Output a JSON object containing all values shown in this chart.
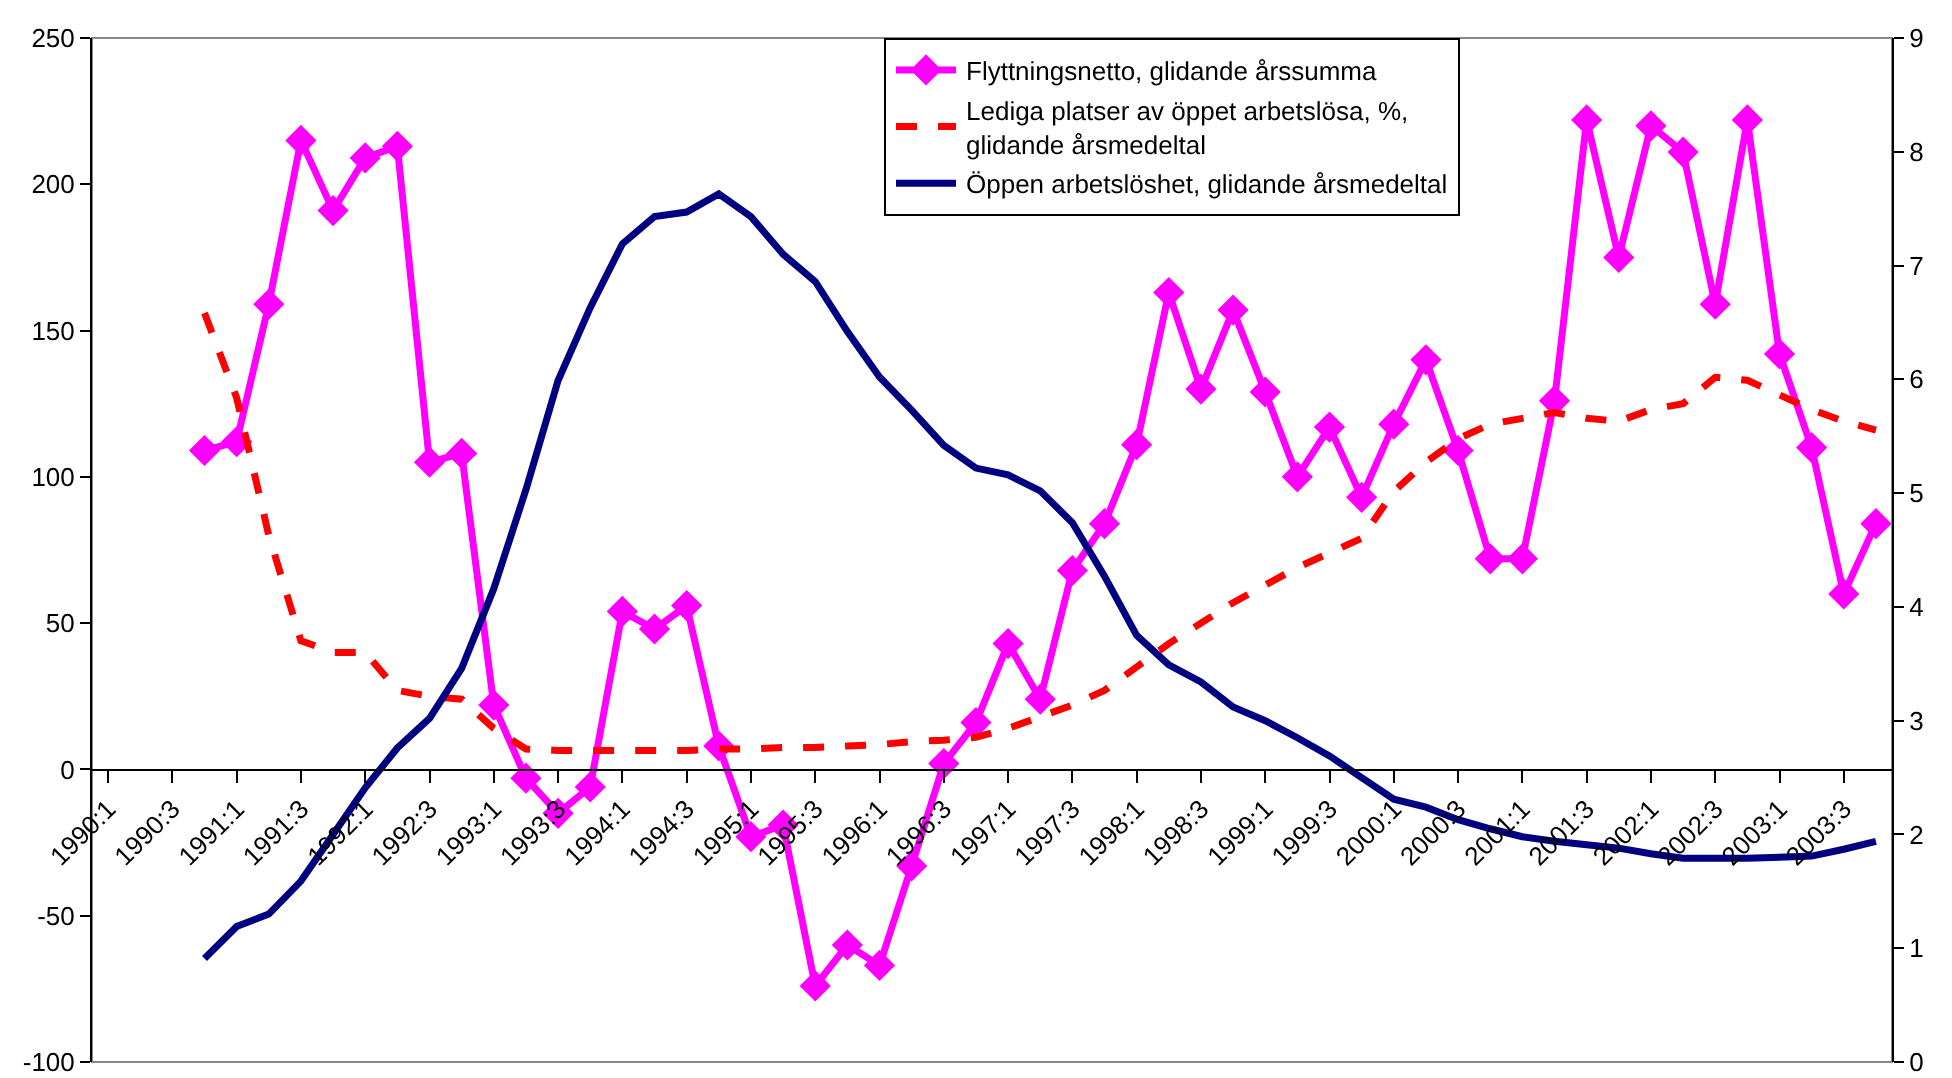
{
  "chart_data": {
    "type": "line",
    "categories": [
      "1990:1",
      null,
      "1990:3",
      null,
      "1991:1",
      null,
      "1991:3",
      null,
      "1992:1",
      null,
      "1992:3",
      null,
      "1993:1",
      null,
      "1993:3",
      null,
      "1994:1",
      null,
      "1994:3",
      null,
      "1995:1",
      null,
      "1995:3",
      null,
      "1996:1",
      null,
      "1996:3",
      null,
      "1997:1",
      null,
      "1997:3",
      null,
      "1998:1",
      null,
      "1998:3",
      null,
      "1999:1",
      null,
      "1999:3",
      null,
      "2000:1",
      null,
      "2000:3",
      null,
      "2001:1",
      null,
      "2001:3",
      null,
      "2002:1",
      null,
      "2002:3",
      null,
      "2003:1",
      null,
      "2003:3",
      null
    ],
    "series": [
      {
        "name": "Flyttningsnetto, glidande årssumma",
        "color": "#ff00ff",
        "marker": "diamond",
        "line_style": "solid",
        "values": [
          null,
          null,
          null,
          109,
          112,
          159,
          215,
          191,
          209,
          213,
          105,
          108,
          22,
          -3,
          -15,
          -6,
          54,
          48,
          56,
          8,
          -23,
          -19,
          -74,
          -60,
          -67,
          -33,
          2,
          16,
          43,
          24,
          68,
          84,
          111,
          163,
          130,
          157,
          129,
          100,
          117,
          93,
          118,
          140,
          109,
          72,
          72,
          126,
          222,
          175,
          220,
          211,
          159,
          222,
          142,
          110,
          60,
          84
        ]
      },
      {
        "name": "Lediga platser av öppet arbetslösa, %,\nglidande årsmedeltal",
        "color": "#ff0000",
        "marker": "none",
        "line_style": "dashed",
        "values": [
          null,
          null,
          null,
          156,
          127,
          80,
          44,
          40,
          40,
          27,
          25,
          24,
          14,
          7,
          6.5,
          6.5,
          6.5,
          6.5,
          6.5,
          7,
          7,
          7.5,
          7.5,
          8,
          8.5,
          9.5,
          10,
          11,
          14,
          18,
          22,
          27,
          35,
          43,
          50,
          57,
          63,
          69,
          74,
          79,
          95,
          105,
          113,
          118,
          120,
          122,
          120,
          119,
          123,
          125,
          134,
          133,
          128,
          123,
          119,
          116
        ]
      },
      {
        "name": "Öppen arbetslöshet, glidande årsmedeltal",
        "color": "#000080",
        "marker": "none",
        "line_style": "solid",
        "axis": "y2",
        "values": [
          null,
          null,
          null,
          0.91,
          1.19,
          1.3,
          1.59,
          2.0,
          2.41,
          2.76,
          3.02,
          3.46,
          4.16,
          5.03,
          5.99,
          6.63,
          7.19,
          7.43,
          7.47,
          7.63,
          7.43,
          7.1,
          6.86,
          6.42,
          6.02,
          5.73,
          5.42,
          5.22,
          5.16,
          5.02,
          4.74,
          4.27,
          3.75,
          3.49,
          3.34,
          3.12,
          3.0,
          2.85,
          2.69,
          2.5,
          2.31,
          2.24,
          2.13,
          2.05,
          1.98,
          1.94,
          1.91,
          1.88,
          1.83,
          1.79,
          1.79,
          1.79,
          1.8,
          1.81,
          1.87,
          1.94
        ]
      }
    ],
    "ylim": [
      -100,
      250
    ],
    "yticks": [
      -100,
      -50,
      0,
      50,
      100,
      150,
      200,
      250
    ],
    "y2lim": [
      0,
      9
    ],
    "y2ticks": [
      0,
      1,
      2,
      3,
      4,
      5,
      6,
      7,
      8,
      9
    ],
    "grid": false,
    "legend": "top"
  }
}
